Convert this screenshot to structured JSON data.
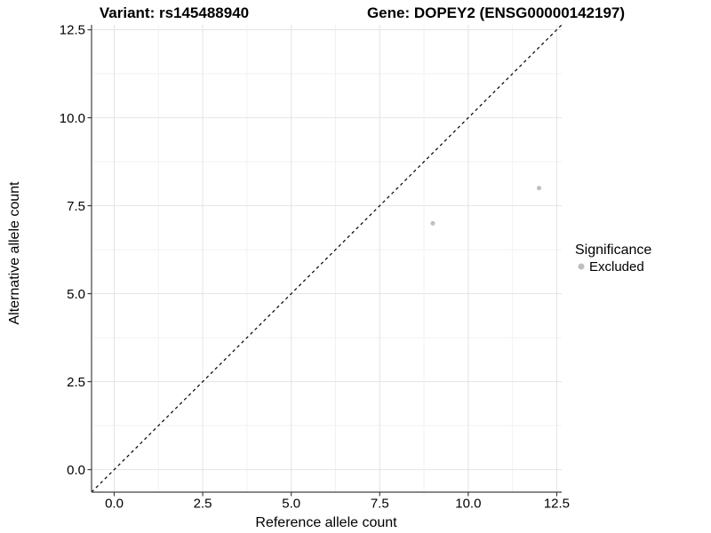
{
  "chart_data": {
    "type": "scatter",
    "title_left": "Variant: rs145488940",
    "title_right": "Gene: DOPEY2 (ENSG00000142197)",
    "xlabel": "Reference allele count",
    "ylabel": "Alternative allele count",
    "xlim": [
      -0.64,
      12.64
    ],
    "ylim": [
      -0.64,
      12.64
    ],
    "x_ticks": {
      "values": [
        0,
        2.5,
        5,
        7.5,
        10,
        12.5
      ],
      "labels": [
        "0.0",
        "2.5",
        "5.0",
        "7.5",
        "10.0",
        "12.5"
      ]
    },
    "y_ticks": {
      "values": [
        0,
        2.5,
        5,
        7.5,
        10,
        12.5
      ],
      "labels": [
        "0.0",
        "2.5",
        "5.0",
        "7.5",
        "10.0",
        "12.5"
      ]
    },
    "minor_gridlines": [
      1.25,
      3.75,
      6.25,
      8.75,
      11.25
    ],
    "grid": "major+minor",
    "reference_line": {
      "kind": "identity-diagonal",
      "slope": 1,
      "intercept": 0,
      "style": "dashed",
      "color": "#000000"
    },
    "series": [
      {
        "name": "Excluded",
        "marker_color": "#bebebe",
        "marker_radius": 2.5,
        "points": [
          [
            9,
            7
          ],
          [
            12,
            8
          ]
        ]
      }
    ],
    "legend": {
      "title": "Significance",
      "position": "right",
      "items": [
        {
          "label": "Excluded",
          "color": "#bebebe"
        }
      ]
    },
    "style": {
      "background": "#ffffff",
      "axis_line_color": "#404040",
      "tick_color": "#333333",
      "major_grid_color": "#e4e4e4",
      "minor_grid_color": "#f2f2f2",
      "text_color": "#000000",
      "tick_label_size": 15
    }
  }
}
